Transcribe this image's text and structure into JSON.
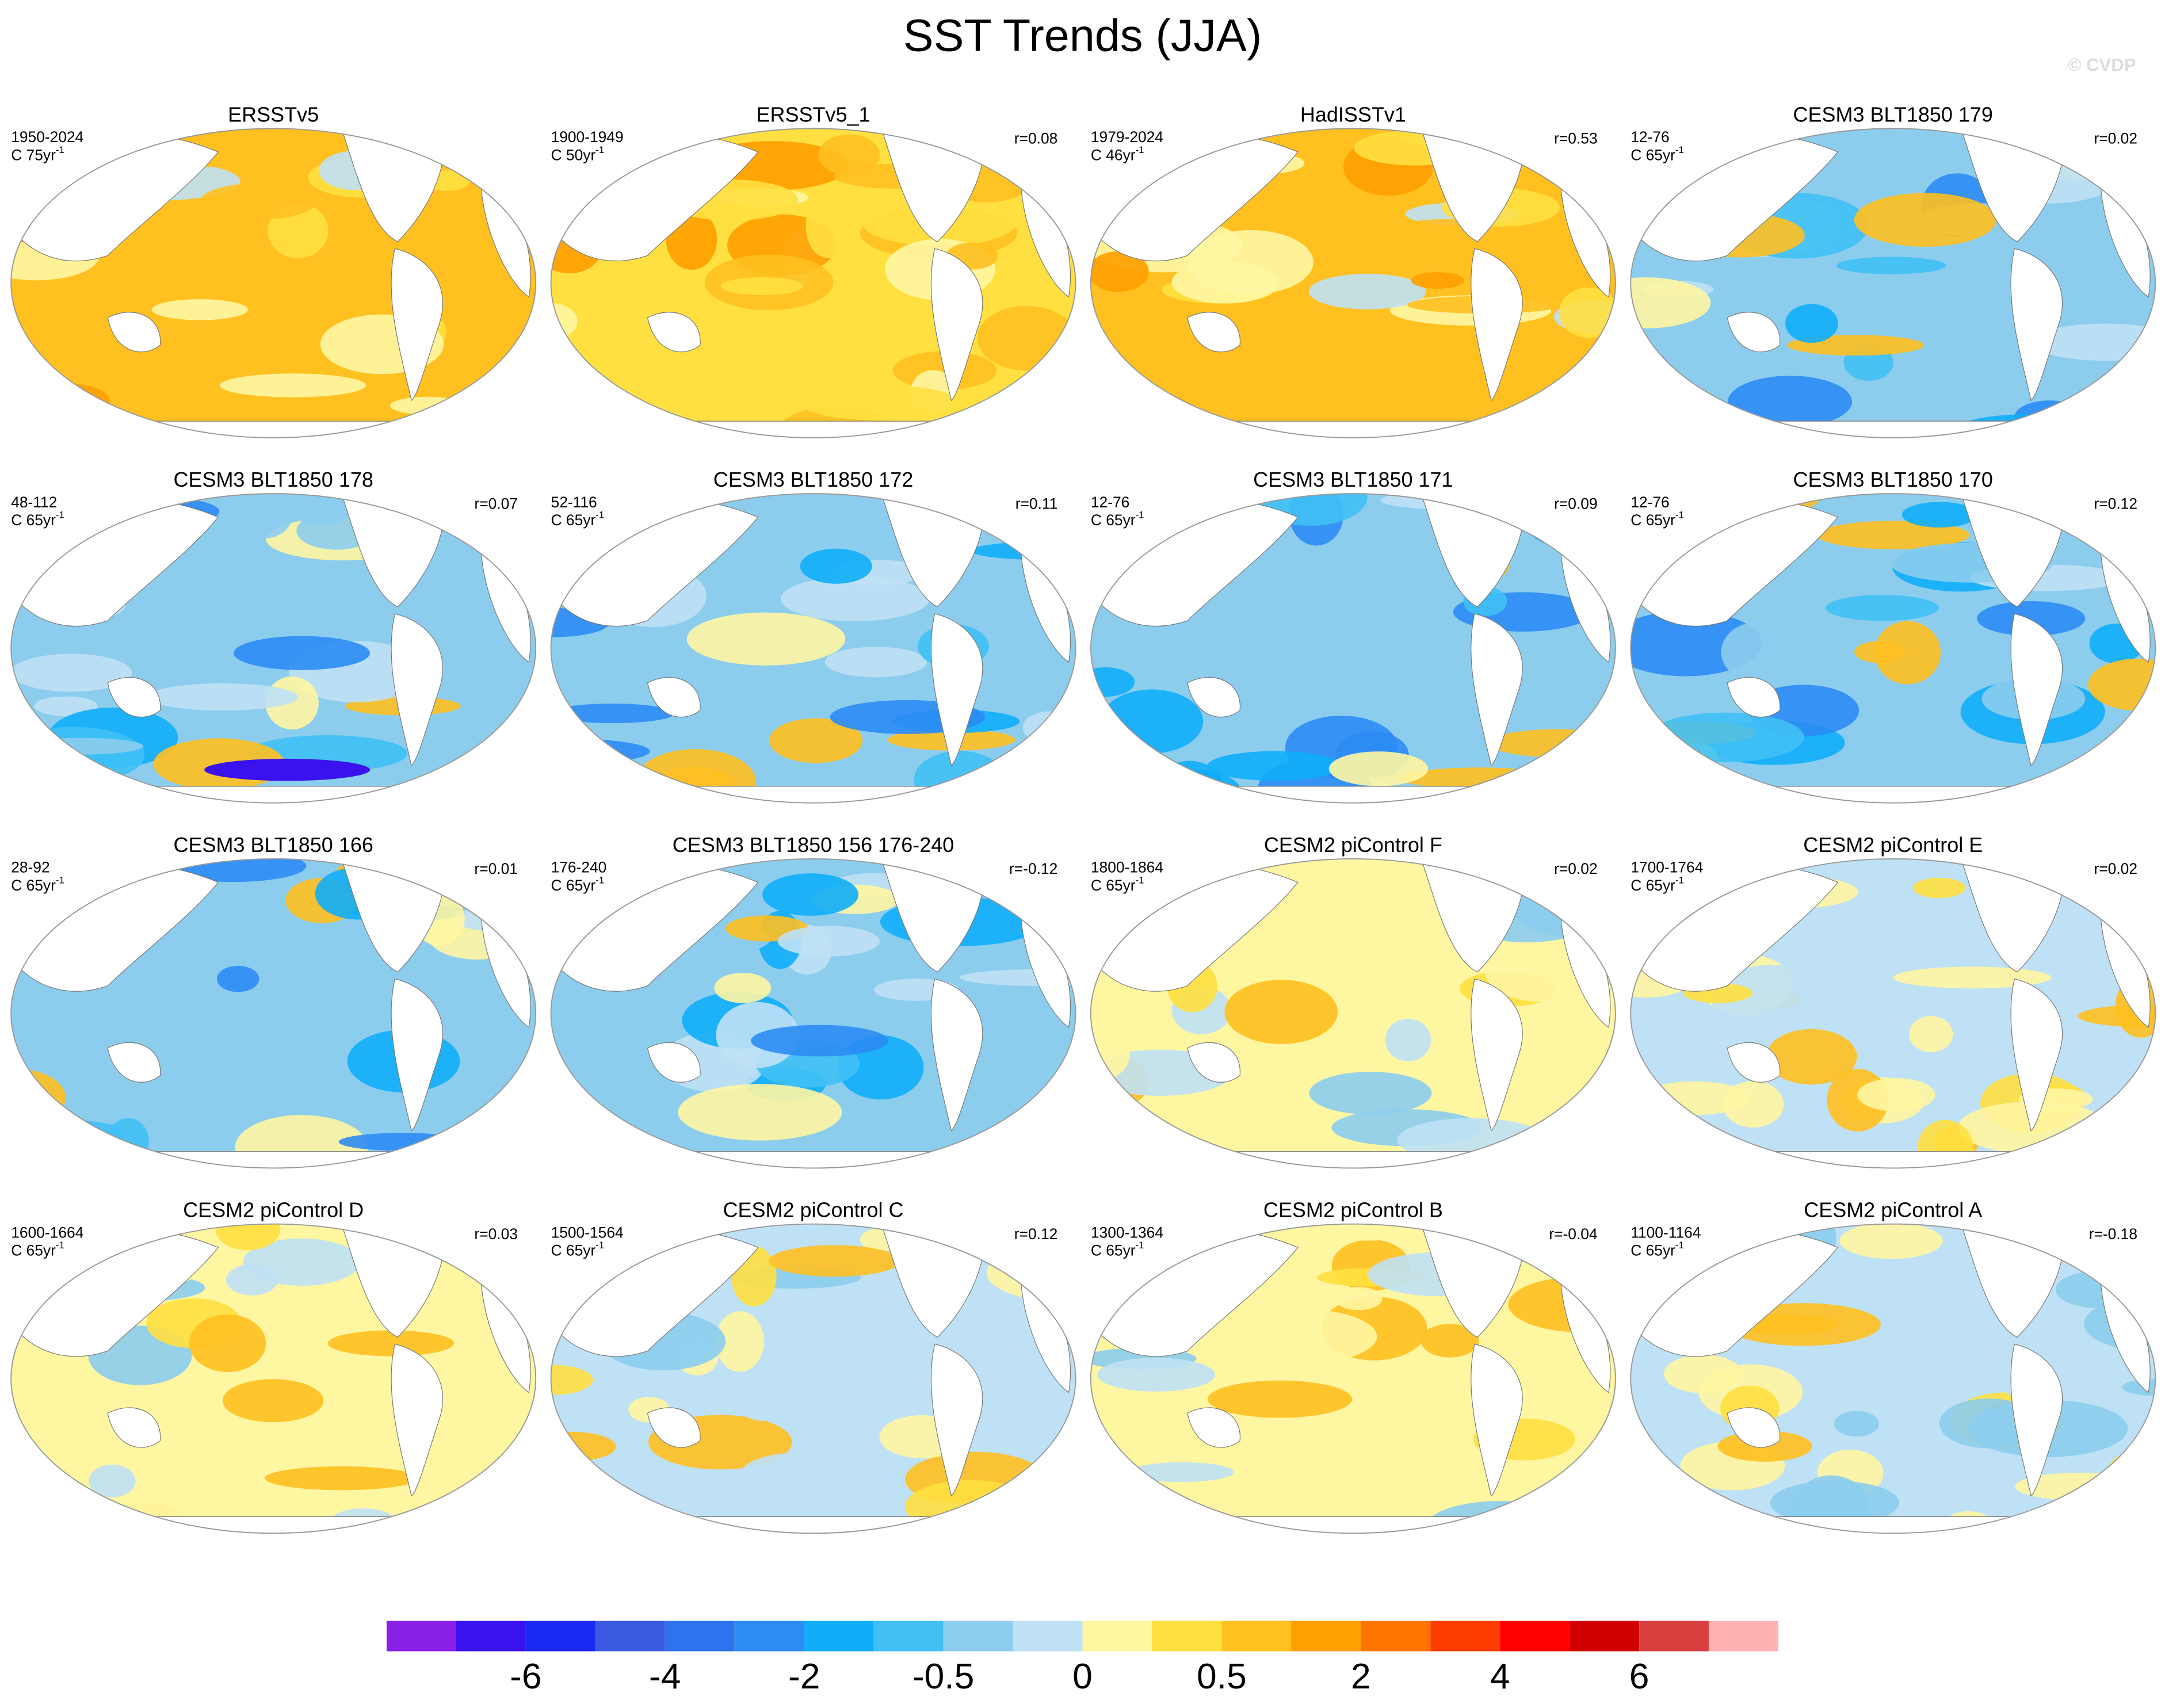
{
  "header": {
    "title": "SST Trends (JJA)",
    "watermark": "© CVDP"
  },
  "panels": [
    {
      "title": "ERSSTv5",
      "period": "1950-2024",
      "units": "C 75yr",
      "units_exponent": "-1"
    },
    {
      "title": "ERSSTv5_1",
      "period": "1900-1949",
      "units": "C 50yr",
      "units_exponent": "-1",
      "r": "r=0.08"
    },
    {
      "title": "HadISSTv1",
      "period": "1979-2024",
      "units": "C 46yr",
      "units_exponent": "-1",
      "r": "r=0.53"
    },
    {
      "title": "CESM3 BLT1850 179",
      "period": "12-76",
      "units": "C 65yr",
      "units_exponent": "-1",
      "r": "r=0.02"
    },
    {
      "title": "CESM3 BLT1850 178",
      "period": "48-112",
      "units": "C 65yr",
      "units_exponent": "-1",
      "r": "r=0.07"
    },
    {
      "title": "CESM3 BLT1850 172",
      "period": "52-116",
      "units": "C 65yr",
      "units_exponent": "-1",
      "r": "r=0.11"
    },
    {
      "title": "CESM3 BLT1850 171",
      "period": "12-76",
      "units": "C 65yr",
      "units_exponent": "-1",
      "r": "r=0.09"
    },
    {
      "title": "CESM3 BLT1850 170",
      "period": "12-76",
      "units": "C 65yr",
      "units_exponent": "-1",
      "r": "r=0.12"
    },
    {
      "title": "CESM3 BLT1850 166",
      "period": "28-92",
      "units": "C 65yr",
      "units_exponent": "-1",
      "r": "r=0.01"
    },
    {
      "title": "CESM3 BLT1850 156 176-240",
      "period": "176-240",
      "units": "C 65yr",
      "units_exponent": "-1",
      "r": "r=-0.12"
    },
    {
      "title": "CESM2 piControl F",
      "period": "1800-1864",
      "units": "C 65yr",
      "units_exponent": "-1",
      "r": "r=0.02"
    },
    {
      "title": "CESM2 piControl E",
      "period": "1700-1764",
      "units": "C 65yr",
      "units_exponent": "-1",
      "r": "r=0.02"
    },
    {
      "title": "CESM2 piControl D",
      "period": "1600-1664",
      "units": "C 65yr",
      "units_exponent": "-1",
      "r": "r=0.03"
    },
    {
      "title": "CESM2 piControl C",
      "period": "1500-1564",
      "units": "C 65yr",
      "units_exponent": "-1",
      "r": "r=0.12"
    },
    {
      "title": "CESM2 piControl B",
      "period": "1300-1364",
      "units": "C 65yr",
      "units_exponent": "-1",
      "r": "r=-0.04"
    },
    {
      "title": "CESM2 piControl A",
      "period": "1100-1164",
      "units": "C 65yr",
      "units_exponent": "-1",
      "r": "r=-0.18"
    }
  ],
  "colorbar": {
    "colors": [
      "#8a1fe6",
      "#3a12ee",
      "#1a28f4",
      "#3c5ae0",
      "#2e72ee",
      "#2c8cf4",
      "#10aef8",
      "#40c0f5",
      "#8ccdee",
      "#bfe1f5",
      "#fff6a2",
      "#ffe040",
      "#ffc020",
      "#ff9f00",
      "#ff7500",
      "#ff3d00",
      "#ff0000",
      "#d00000",
      "#d84040",
      "#ffb2b2"
    ],
    "labels": [
      -6,
      -4,
      -2,
      -0.5,
      0,
      0.5,
      2,
      4,
      6
    ]
  }
}
